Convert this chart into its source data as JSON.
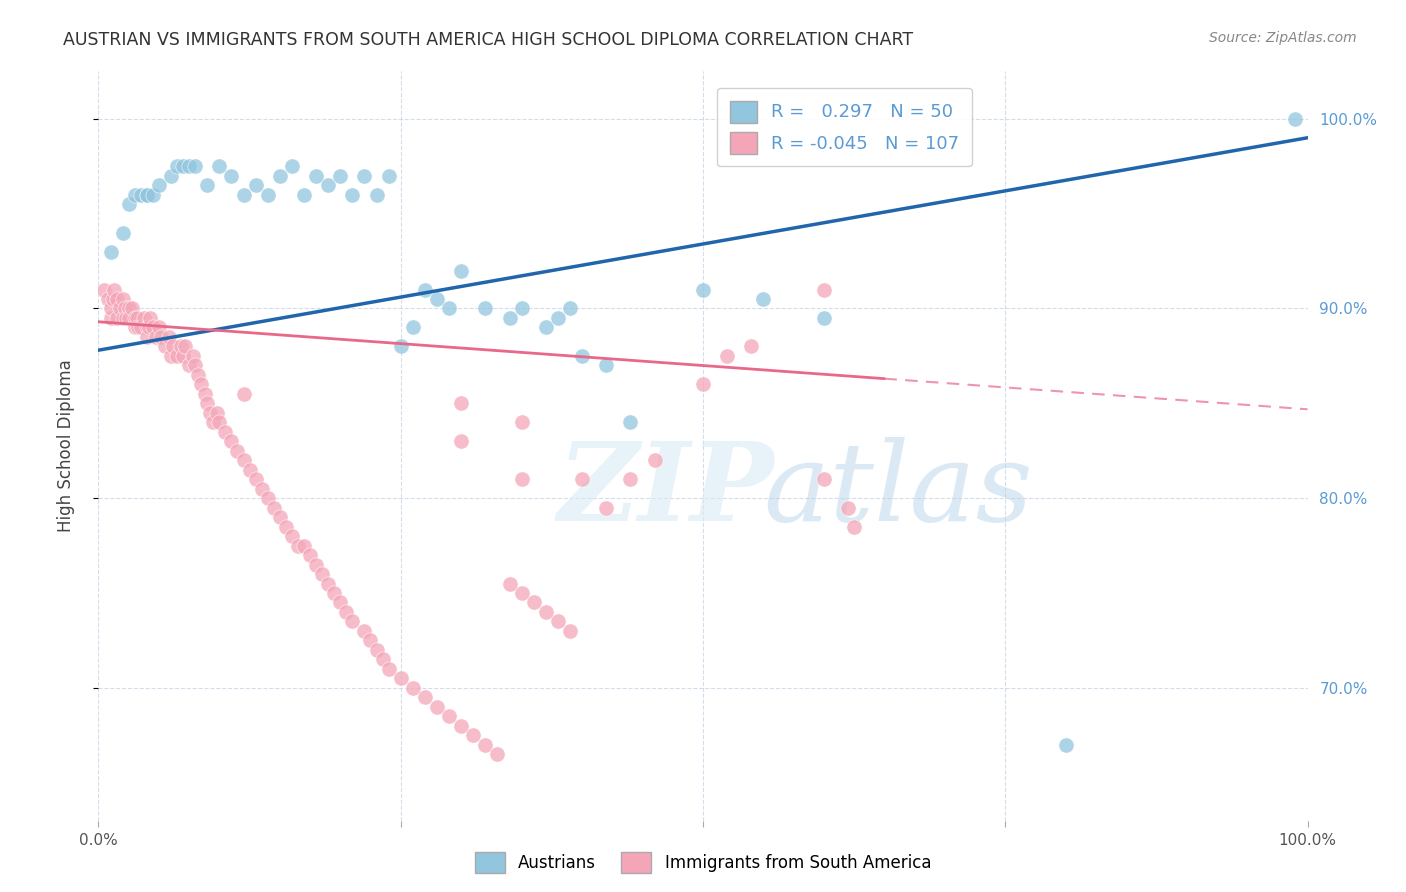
{
  "title": "AUSTRIAN VS IMMIGRANTS FROM SOUTH AMERICA HIGH SCHOOL DIPLOMA CORRELATION CHART",
  "source": "Source: ZipAtlas.com",
  "ylabel": "High School Diploma",
  "watermark_zip": "ZIP",
  "watermark_atlas": "atlas",
  "legend_austrians_label": "Austrians",
  "legend_immigrants_label": "Immigrants from South America",
  "r_austrians": "0.297",
  "n_austrians": "50",
  "r_immigrants": "-0.045",
  "n_immigrants": "107",
  "blue_color": "#92c5de",
  "pink_color": "#f4a6b8",
  "blue_line_color": "#2166ac",
  "pink_line_color": "#e8688a",
  "right_axis_color": "#5b9bd5",
  "xlim": [
    0.0,
    1.0
  ],
  "ylim": [
    0.63,
    1.025
  ],
  "grid_color": "#d0d8e8",
  "background_color": "#ffffff",
  "blue_x": [
    0.01,
    0.02,
    0.025,
    0.03,
    0.035,
    0.04,
    0.04,
    0.045,
    0.05,
    0.06,
    0.065,
    0.07,
    0.075,
    0.08,
    0.09,
    0.1,
    0.11,
    0.12,
    0.13,
    0.14,
    0.15,
    0.16,
    0.17,
    0.18,
    0.19,
    0.2,
    0.21,
    0.22,
    0.23,
    0.24,
    0.25,
    0.26,
    0.27,
    0.28,
    0.29,
    0.3,
    0.32,
    0.34,
    0.35,
    0.37,
    0.38,
    0.39,
    0.4,
    0.42,
    0.44,
    0.5,
    0.55,
    0.6,
    0.8,
    0.99
  ],
  "blue_y": [
    0.93,
    0.94,
    0.955,
    0.96,
    0.96,
    0.96,
    0.96,
    0.96,
    0.965,
    0.97,
    0.975,
    0.975,
    0.975,
    0.975,
    0.965,
    0.975,
    0.97,
    0.96,
    0.965,
    0.96,
    0.97,
    0.975,
    0.96,
    0.97,
    0.965,
    0.97,
    0.96,
    0.97,
    0.96,
    0.97,
    0.88,
    0.89,
    0.91,
    0.905,
    0.9,
    0.92,
    0.9,
    0.895,
    0.9,
    0.89,
    0.895,
    0.9,
    0.875,
    0.87,
    0.84,
    0.91,
    0.905,
    0.895,
    0.67,
    1.0
  ],
  "pink_x": [
    0.005,
    0.008,
    0.01,
    0.01,
    0.012,
    0.013,
    0.015,
    0.015,
    0.018,
    0.02,
    0.02,
    0.022,
    0.023,
    0.025,
    0.025,
    0.028,
    0.03,
    0.03,
    0.032,
    0.033,
    0.035,
    0.038,
    0.04,
    0.04,
    0.042,
    0.043,
    0.045,
    0.048,
    0.05,
    0.052,
    0.055,
    0.058,
    0.06,
    0.062,
    0.065,
    0.068,
    0.07,
    0.072,
    0.075,
    0.078,
    0.08,
    0.082,
    0.085,
    0.088,
    0.09,
    0.092,
    0.095,
    0.098,
    0.1,
    0.105,
    0.11,
    0.115,
    0.12,
    0.12,
    0.125,
    0.13,
    0.135,
    0.14,
    0.145,
    0.15,
    0.155,
    0.16,
    0.165,
    0.17,
    0.175,
    0.18,
    0.185,
    0.19,
    0.195,
    0.2,
    0.205,
    0.21,
    0.22,
    0.225,
    0.23,
    0.235,
    0.24,
    0.25,
    0.26,
    0.27,
    0.28,
    0.29,
    0.3,
    0.31,
    0.32,
    0.33,
    0.34,
    0.35,
    0.36,
    0.37,
    0.38,
    0.39,
    0.4,
    0.42,
    0.44,
    0.46,
    0.5,
    0.52,
    0.54,
    0.6,
    0.62,
    0.3,
    0.3,
    0.35,
    0.35,
    0.6,
    0.625
  ],
  "pink_y": [
    0.91,
    0.905,
    0.895,
    0.9,
    0.905,
    0.91,
    0.905,
    0.895,
    0.9,
    0.905,
    0.895,
    0.9,
    0.895,
    0.9,
    0.895,
    0.9,
    0.895,
    0.89,
    0.895,
    0.89,
    0.89,
    0.895,
    0.89,
    0.885,
    0.89,
    0.895,
    0.89,
    0.885,
    0.89,
    0.885,
    0.88,
    0.885,
    0.875,
    0.88,
    0.875,
    0.88,
    0.875,
    0.88,
    0.87,
    0.875,
    0.87,
    0.865,
    0.86,
    0.855,
    0.85,
    0.845,
    0.84,
    0.845,
    0.84,
    0.835,
    0.83,
    0.825,
    0.82,
    0.855,
    0.815,
    0.81,
    0.805,
    0.8,
    0.795,
    0.79,
    0.785,
    0.78,
    0.775,
    0.775,
    0.77,
    0.765,
    0.76,
    0.755,
    0.75,
    0.745,
    0.74,
    0.735,
    0.73,
    0.725,
    0.72,
    0.715,
    0.71,
    0.705,
    0.7,
    0.695,
    0.69,
    0.685,
    0.68,
    0.675,
    0.67,
    0.665,
    0.755,
    0.75,
    0.745,
    0.74,
    0.735,
    0.73,
    0.81,
    0.795,
    0.81,
    0.82,
    0.86,
    0.875,
    0.88,
    0.81,
    0.795,
    0.85,
    0.83,
    0.84,
    0.81,
    0.91,
    0.785
  ],
  "blue_trend_x0": 0.0,
  "blue_trend_x1": 1.0,
  "blue_trend_y0": 0.878,
  "blue_trend_y1": 0.99,
  "pink_trend_x0": 0.0,
  "pink_trend_x1": 0.65,
  "pink_trend_dash_x0": 0.65,
  "pink_trend_dash_x1": 1.0,
  "pink_trend_y0": 0.893,
  "pink_trend_y1": 0.863,
  "pink_trend_y_at_dash_start": 0.863,
  "pink_trend_y_at_dash_end": 0.85
}
